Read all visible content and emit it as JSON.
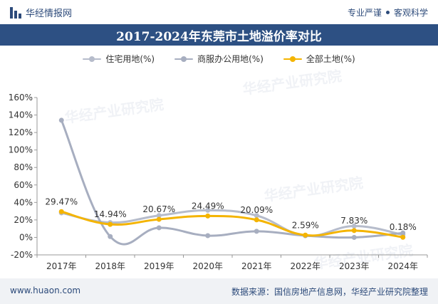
{
  "header": {
    "brand": "华经情报网",
    "tagline_left": "专业严谨",
    "tagline_right": "客观科学"
  },
  "title": "2017-2024年东莞市土地溢价率对比",
  "footer": {
    "website": "www.huaon.com",
    "source": "数据来源：国信房地产信息网，华经产业研究院整理"
  },
  "watermark": "华经产业研究院",
  "colors": {
    "header_bg": "#2d5083",
    "residential": "#b6bccb",
    "commercial": "#a7aec0",
    "all": "#f4b400"
  },
  "chart_data": {
    "type": "line",
    "categories": [
      "2017年",
      "2018年",
      "2019年",
      "2020年",
      "2021年",
      "2022年",
      "2023年",
      "2024年"
    ],
    "ylim": [
      -20,
      160
    ],
    "yticks": [
      "-20%",
      "0%",
      "20%",
      "40%",
      "60%",
      "80%",
      "100%",
      "120%",
      "140%",
      "160%"
    ],
    "grid": false,
    "legend_position": "top",
    "series": [
      {
        "name": "住宅用地(%)",
        "color": "#b6bccb",
        "values": [
          28,
          17,
          25,
          31,
          25,
          2,
          13,
          3
        ]
      },
      {
        "name": "商服办公用地(%)",
        "color": "#a7aec0",
        "values": [
          134,
          1,
          11,
          2,
          7,
          2,
          0,
          5
        ]
      },
      {
        "name": "全部土地(%)",
        "color": "#f4b400",
        "values": [
          29.47,
          14.94,
          20.67,
          24.49,
          20.09,
          2.59,
          7.83,
          0.18
        ],
        "labels": [
          "29.47%",
          "14.94%",
          "20.67%",
          "24.49%",
          "20.09%",
          "2.59%",
          "7.83%",
          "0.18%"
        ]
      }
    ]
  }
}
